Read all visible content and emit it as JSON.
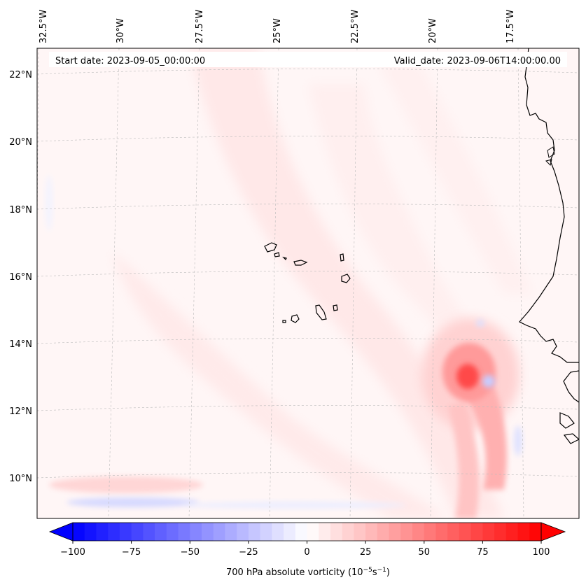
{
  "map": {
    "start_date_text": "Start date: 2023-09-05_00:00:00",
    "valid_date_text": "Valid_date: 2023-09-06T14:00:00.00",
    "lon_labels": [
      "32.5°W",
      "30°W",
      "27.5°W",
      "25°W",
      "22.5°W",
      "20°W",
      "17.5°W"
    ],
    "lat_labels": [
      "22°N",
      "20°N",
      "18°N",
      "16°N",
      "14°N",
      "12°N",
      "10°N"
    ],
    "field": "700 hPa absolute vorticity",
    "colors": {
      "coast": "#000000",
      "background": "#fff5f5",
      "positive_max": "#ff0000",
      "negative_max": "#0000ff",
      "zero": "#ffffff"
    }
  },
  "colorbar": {
    "ticks": [
      "−100",
      "−75",
      "−50",
      "−25",
      "0",
      "25",
      "50",
      "75",
      "100"
    ],
    "min": -100,
    "max": 100,
    "label_prefix": "700 hPa absolute vorticity (10",
    "label_exp1": "−5",
    "label_mid": "s",
    "label_exp2": "−1",
    "label_suffix": ")"
  }
}
